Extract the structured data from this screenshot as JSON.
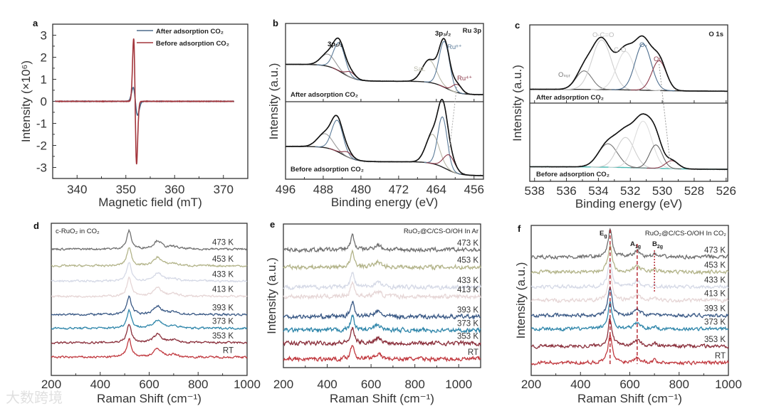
{
  "watermark": "大数跨境",
  "chart_data": [
    {
      "panel": "a",
      "type": "line",
      "xlabel": "Magnetic field (mT)",
      "ylabel": "Intensity (×10⁶)",
      "xlim": [
        335,
        375
      ],
      "ylim": [
        -3.5,
        3.5
      ],
      "xticks": [
        340,
        350,
        360,
        370
      ],
      "yticks": [
        3,
        2,
        1,
        0,
        -1,
        -2,
        -3
      ],
      "legend": {
        "position": "top-right"
      },
      "series": [
        {
          "name": "After adsorption CO₂",
          "color": "#4d6b8c",
          "center": 351.95,
          "width": 0.45,
          "peak": 0.63
        },
        {
          "name": "Before adsorption CO₂",
          "color": "#a3363c",
          "center": 351.9,
          "width": 0.3,
          "peak": 2.85
        }
      ]
    },
    {
      "panel": "b",
      "type": "line",
      "xlabel": "Binding energy (eV)",
      "ylabel": "Intensity (a.u.)",
      "xlim": [
        496,
        454
      ],
      "xticks": [
        496,
        488,
        480,
        472,
        464,
        456
      ],
      "corner_label": "Ru 3p",
      "annotations": [
        "3p₁/₂",
        "3p₃/₂",
        "Ruⁿ⁺",
        "Sat.",
        "Ru⁴⁺"
      ],
      "subplots": [
        {
          "label": "After adsorption CO₂",
          "background": {
            "base": 0.05,
            "steps": [
              {
                "at": 462,
                "height": 0.2
              },
              {
                "at": 484,
                "height": 0.25
              }
            ]
          },
          "components": [
            {
              "center": 487.0,
              "width": 1.5,
              "height": 0.18,
              "color": "#9a9a9a"
            },
            {
              "center": 484.6,
              "width": 1.2,
              "height": 0.42,
              "color": "#5b7b99"
            },
            {
              "center": 482.2,
              "width": 1.0,
              "height": 0.08,
              "color": "#8b3a4a"
            },
            {
              "center": 465.5,
              "width": 1.5,
              "height": 0.33,
              "color": "#b8b8a8"
            },
            {
              "center": 462.3,
              "width": 1.1,
              "height": 0.68,
              "color": "#5b7b99"
            },
            {
              "center": 459.6,
              "width": 1.0,
              "height": 0.12,
              "color": "#8b3a4a"
            }
          ]
        },
        {
          "label": "Before adsorption CO₂",
          "background": {
            "base": 0.03,
            "steps": [
              {
                "at": 462,
                "height": 0.2
              },
              {
                "at": 484,
                "height": 0.22
              }
            ]
          },
          "components": [
            {
              "center": 487.6,
              "width": 1.6,
              "height": 0.2,
              "color": "#9a9a9a"
            },
            {
              "center": 485.0,
              "width": 1.2,
              "height": 0.45,
              "color": "#5b7b99"
            },
            {
              "center": 482.8,
              "width": 1.0,
              "height": 0.07,
              "color": "#8b3a4a"
            },
            {
              "center": 464.8,
              "width": 1.4,
              "height": 0.42,
              "color": "#b8b8a8"
            },
            {
              "center": 462.7,
              "width": 1.0,
              "height": 0.72,
              "color": "#5b7b99"
            },
            {
              "center": 461.3,
              "width": 1.2,
              "height": 0.22,
              "color": "#8b3a4a"
            }
          ]
        }
      ]
    },
    {
      "panel": "c",
      "type": "line",
      "xlabel": "Binding energy (eV)",
      "ylabel": "Intensity (a.u.)",
      "xlim": [
        538.3,
        525.9
      ],
      "xticks": [
        538,
        536,
        534,
        532,
        530,
        528,
        526
      ],
      "corner_label": "O 1s",
      "annotations": [
        "O-C=O",
        "C-O",
        "Oᵥ",
        "Oʟ",
        "Oₛᵤᵣ"
      ],
      "subplots": [
        {
          "label": "After adsorption CO₂",
          "background_color": "#333333",
          "background": {
            "base": 0.05,
            "steps": [
              {
                "at": 531,
                "height": 0.03
              }
            ]
          },
          "components": [
            {
              "center": 534.9,
              "width": 0.5,
              "height": 0.28,
              "color": "#777777"
            },
            {
              "center": 533.8,
              "width": 0.6,
              "height": 0.75,
              "color": "#cfcfcf"
            },
            {
              "center": 532.3,
              "width": 0.55,
              "height": 0.58,
              "color": "#dddddd"
            },
            {
              "center": 531.2,
              "width": 0.5,
              "height": 0.7,
              "color": "#4e6e8e"
            },
            {
              "center": 530.2,
              "width": 0.45,
              "height": 0.45,
              "color": "#8b3a4a"
            }
          ]
        },
        {
          "label": "Before adsorption CO₂",
          "background_color": "#4ab8b0",
          "background": {
            "base": 0.04,
            "steps": [
              {
                "at": 531,
                "height": 0.04
              }
            ]
          },
          "components": [
            {
              "center": 533.4,
              "width": 0.6,
              "height": 0.35,
              "color": "#777777"
            },
            {
              "center": 532.3,
              "width": 0.55,
              "height": 0.45,
              "color": "#cfcfcf"
            },
            {
              "center": 531.2,
              "width": 0.55,
              "height": 0.7,
              "color": "#dddddd"
            },
            {
              "center": 530.4,
              "width": 0.4,
              "height": 0.35,
              "color": "#666666"
            },
            {
              "center": 529.4,
              "width": 0.4,
              "height": 0.12,
              "color": "#8b3a4a"
            }
          ]
        }
      ]
    },
    {
      "panel": "d",
      "type": "line",
      "title": "c-RuO₂ in CO₂",
      "xlabel": "Raman Shift (cm⁻¹)",
      "ylabel": "",
      "xlim": [
        200,
        1000
      ],
      "ylim": [
        0,
        10
      ],
      "xticks": [
        200,
        400,
        600,
        800,
        1000
      ],
      "peaks": [
        {
          "position": 518,
          "height": 1.2,
          "hwhm": 11
        },
        {
          "position": 635,
          "height": 0.55,
          "hwhm": 20
        },
        {
          "position": 700,
          "height": 0.15,
          "hwhm": 20
        }
      ],
      "noise": 0.05,
      "series": [
        {
          "name": "473 K",
          "color": "#6f6f6f",
          "offset": 8.3
        },
        {
          "name": "453 K",
          "color": "#b3b48a",
          "offset": 7.2
        },
        {
          "name": "433 K",
          "color": "#d5d9e6",
          "offset": 6.2
        },
        {
          "name": "413 K",
          "color": "#e6d6d6",
          "offset": 5.2
        },
        {
          "name": "393 K",
          "color": "#3b5a86",
          "offset": 4.0
        },
        {
          "name": "373 K",
          "color": "#2f86aa",
          "offset": 3.1
        },
        {
          "name": "353 K",
          "color": "#8a2f3b",
          "offset": 2.15
        },
        {
          "name": "RT",
          "color": "#c13a40",
          "offset": 1.2
        }
      ]
    },
    {
      "panel": "e",
      "type": "line",
      "title": "RuO₂@C/CS-O/OH In Ar",
      "xlabel": "Raman Shift (cm⁻¹)",
      "ylabel": "Intensity (a.u.)",
      "xlim": [
        200,
        1100
      ],
      "ylim": [
        0,
        10
      ],
      "xticks": [
        200,
        400,
        600,
        800,
        1000
      ],
      "peaks": [
        {
          "position": 515,
          "height": 1.0,
          "hwhm": 10
        },
        {
          "position": 630,
          "height": 0.35,
          "hwhm": 18
        }
      ],
      "noise": 0.11,
      "series": [
        {
          "name": "473 K",
          "color": "#6f6f6f",
          "offset": 8.2
        },
        {
          "name": "453 K",
          "color": "#b3b48a",
          "offset": 7.0
        },
        {
          "name": "433 K",
          "color": "#d5d9e6",
          "offset": 5.6
        },
        {
          "name": "413 K",
          "color": "#e6d6d6",
          "offset": 4.95
        },
        {
          "name": "393 K",
          "color": "#3b5a86",
          "offset": 3.55
        },
        {
          "name": "373 K",
          "color": "#2f86aa",
          "offset": 2.6
        },
        {
          "name": "353 K",
          "color": "#8a2f3b",
          "offset": 1.7
        },
        {
          "name": "RT",
          "color": "#c13a40",
          "offset": 0.6
        }
      ]
    },
    {
      "panel": "f",
      "type": "line",
      "title": "RuO₂@C/CS-O/OH In CO₂",
      "xlabel": "Raman Shift (cm⁻¹)",
      "ylabel": "Intensity (a.u.)",
      "xlim": [
        200,
        1000
      ],
      "ylim": [
        0,
        10
      ],
      "xticks": [
        200,
        400,
        600,
        800,
        1000
      ],
      "modes": [
        {
          "main": "E",
          "sub": "g",
          "position": 520
        },
        {
          "main": "A",
          "sub": "1g",
          "position": 630
        },
        {
          "main": "B",
          "sub": "2g",
          "position": 700
        }
      ],
      "peaks": [
        {
          "position": 520,
          "height": 1.8,
          "hwhm": 10
        },
        {
          "position": 630,
          "height": 0.4,
          "hwhm": 15
        },
        {
          "position": 700,
          "height": 0.18,
          "hwhm": 8
        }
      ],
      "noise": 0.09,
      "series": [
        {
          "name": "473 K",
          "color": "#6f6f6f",
          "offset": 7.9
        },
        {
          "name": "453 K",
          "color": "#b3b48a",
          "offset": 6.9
        },
        {
          "name": "433 K",
          "color": "#d5d9e6",
          "offset": 5.9
        },
        {
          "name": "413 K",
          "color": "#e6d6d6",
          "offset": 5.0
        },
        {
          "name": "393 K",
          "color": "#3b5a86",
          "offset": 4.0
        },
        {
          "name": "373 K",
          "color": "#2f86aa",
          "offset": 3.1
        },
        {
          "name": "353 K",
          "color": "#8a2f3b",
          "offset": 1.95
        },
        {
          "name": "RT",
          "color": "#c13a40",
          "offset": 0.85
        }
      ]
    }
  ]
}
